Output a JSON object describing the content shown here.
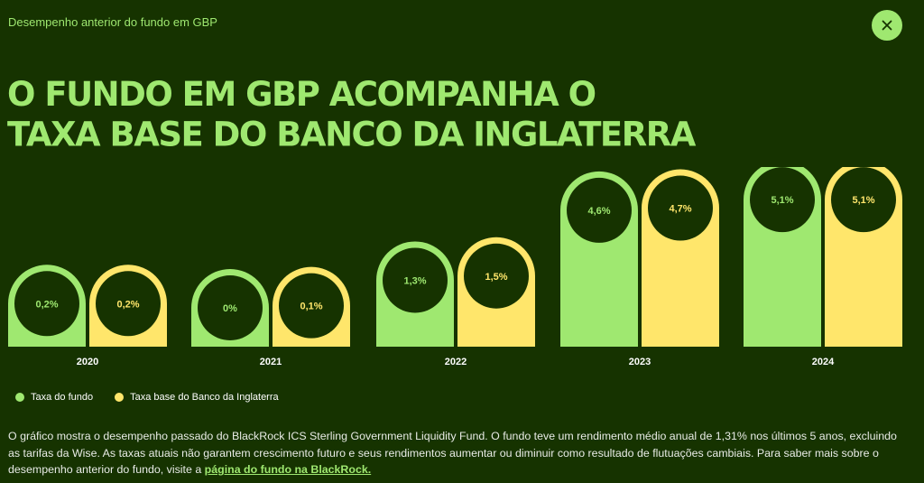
{
  "header": {
    "subtitle": "Desempenho anterior do fundo em GBP",
    "close_icon": "close-icon",
    "headline_line1": "O FUNDO EM GBP ACOMPANHA O",
    "headline_line2": "TAXA BASE DO BANCO DA INGLATERRA"
  },
  "colors": {
    "background": "#163300",
    "fund": "#9fe870",
    "base_rate": "#ffe66b"
  },
  "chart_data": {
    "type": "bar",
    "categories": [
      "2020",
      "2021",
      "2022",
      "2023",
      "2024"
    ],
    "series": [
      {
        "name": "Taxa do fundo",
        "values": [
          0.2,
          0,
          1.3,
          4.6,
          5.1
        ],
        "labels": [
          "0,2%",
          "0%",
          "1,3%",
          "4,6%",
          "5,1%"
        ]
      },
      {
        "name": "Taxa base do Banco da Inglaterra",
        "values": [
          0.2,
          0.1,
          1.5,
          4.7,
          5.1
        ],
        "labels": [
          "0,2%",
          "0,1%",
          "1,5%",
          "4,7%",
          "5,1%"
        ]
      }
    ],
    "legend_position": "bottom-left"
  },
  "legend": {
    "fund_label": "Taxa do fundo",
    "base_label": "Taxa base do Banco da Inglaterra"
  },
  "description": {
    "text": "O gráfico mostra o desempenho passado do BlackRock ICS Sterling Government Liquidity Fund. O fundo teve um rendimento médio anual de 1,31% nos últimos 5 anos, excluindo as tarifas da Wise. As taxas atuais não garantem crescimento futuro e seus rendimentos aumentar ou diminuir como resultado de flutuações cambiais. Para saber mais sobre o desempenho anterior do fundo, visite a ",
    "link_label": "página do fundo na BlackRock."
  }
}
